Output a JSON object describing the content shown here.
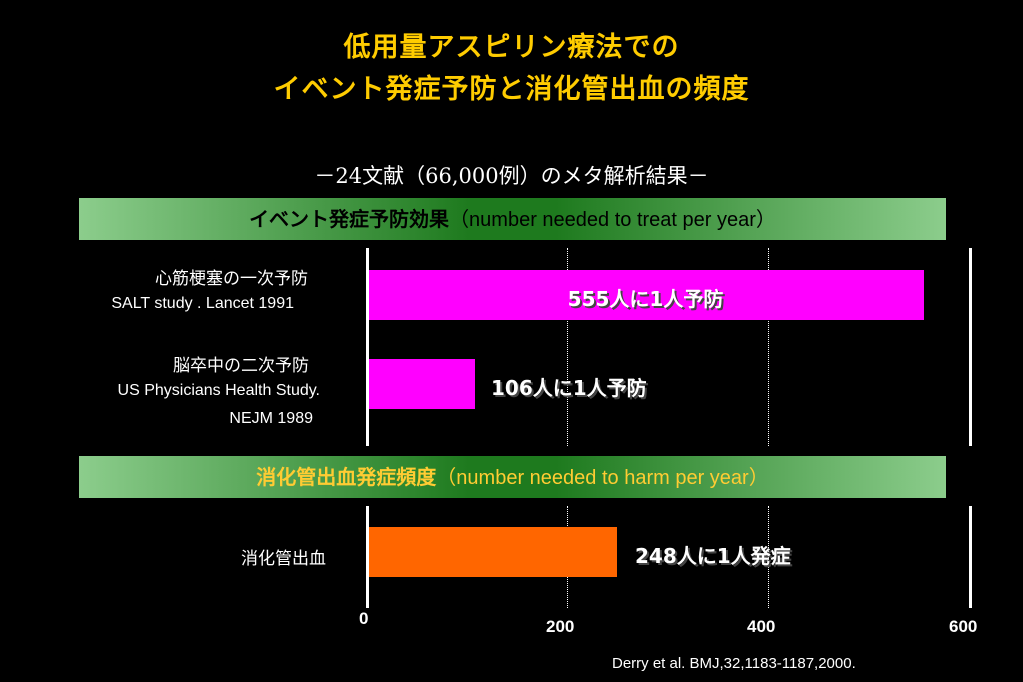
{
  "title_line1": "低用量アスピリン療法での",
  "title_line2": "イベント発症予防と消化管出血の頻度",
  "subtitle": "－24文献（66,000例）のメタ解析結果－",
  "section1": {
    "label_jp": "イベント発症予防効果",
    "label_en": "（number needed to treat per year）",
    "rows": [
      {
        "label_jp": "心筋梗塞の一次予防",
        "label_en": "SALT study . Lancet 1991",
        "value": 555,
        "bar_text": "555人に1人予防",
        "color": "#ff00ff"
      },
      {
        "label_jp": "脳卒中の二次予防",
        "label_en_1": "US Physicians Health Study.",
        "label_en_2": "NEJM 1989",
        "value": 106,
        "bar_text": "106人に1人予防",
        "color": "#ff00ff"
      }
    ]
  },
  "section2": {
    "label_jp": "消化管出血発症頻度",
    "label_en": "（number needed to harm per year）",
    "rows": [
      {
        "label_jp": "消化管出血",
        "value": 248,
        "bar_text": "248人に1人発症",
        "color": "#ff6600"
      }
    ]
  },
  "axis": {
    "ticks": [
      "0",
      "200",
      "400",
      "600"
    ],
    "max": 600
  },
  "reference": "Derry et al. BMJ,32,1183-1187,2000."
}
